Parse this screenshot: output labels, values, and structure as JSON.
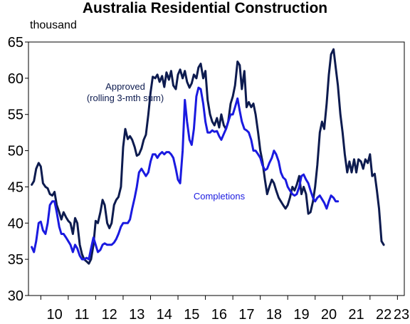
{
  "chart_data": {
    "type": "line",
    "title": "Australia Residential Construction",
    "ylabel": "thousand",
    "ylim": [
      30,
      65
    ],
    "yticks": [
      30,
      35,
      40,
      45,
      50,
      55,
      60,
      65
    ],
    "xlim": [
      2009.55,
      2023.25
    ],
    "xticks": [
      {
        "x": 2010,
        "label": "10"
      },
      {
        "x": 2011,
        "label": "11"
      },
      {
        "x": 2012,
        "label": "12"
      },
      {
        "x": 2013,
        "label": "13"
      },
      {
        "x": 2014,
        "label": "14"
      },
      {
        "x": 2015,
        "label": "15"
      },
      {
        "x": 2016,
        "label": "16"
      },
      {
        "x": 2017,
        "label": "17"
      },
      {
        "x": 2018,
        "label": "18"
      },
      {
        "x": 2019,
        "label": "19"
      },
      {
        "x": 2020,
        "label": "20"
      },
      {
        "x": 2021,
        "label": "21"
      },
      {
        "x": 2022,
        "label": "22"
      },
      {
        "x": 2023,
        "label": "23"
      }
    ],
    "grid": false,
    "series": [
      {
        "name": "Approved (rolling 3-mth sum)",
        "color": "#0d1b4f",
        "label_lines": [
          "Approved",
          "(rolling 3-mth sum)"
        ],
        "points": [
          [
            2009.67,
            45.3
          ],
          [
            2009.75,
            45.8
          ],
          [
            2009.83,
            47.5
          ],
          [
            2009.92,
            48.3
          ],
          [
            2010.0,
            47.8
          ],
          [
            2010.08,
            45.5
          ],
          [
            2010.17,
            45.0
          ],
          [
            2010.25,
            44.8
          ],
          [
            2010.33,
            44.0
          ],
          [
            2010.42,
            43.8
          ],
          [
            2010.5,
            44.3
          ],
          [
            2010.58,
            42.5
          ],
          [
            2010.67,
            41.5
          ],
          [
            2010.75,
            40.5
          ],
          [
            2010.83,
            41.5
          ],
          [
            2010.92,
            40.8
          ],
          [
            2011.0,
            40.3
          ],
          [
            2011.08,
            40.0
          ],
          [
            2011.17,
            38.5
          ],
          [
            2011.25,
            40.7
          ],
          [
            2011.33,
            40.0
          ],
          [
            2011.42,
            37.0
          ],
          [
            2011.5,
            35.7
          ],
          [
            2011.58,
            35.0
          ],
          [
            2011.67,
            34.7
          ],
          [
            2011.75,
            34.4
          ],
          [
            2011.83,
            35.0
          ],
          [
            2011.92,
            37.0
          ],
          [
            2012.0,
            40.3
          ],
          [
            2012.08,
            40.0
          ],
          [
            2012.17,
            41.5
          ],
          [
            2012.25,
            43.2
          ],
          [
            2012.33,
            42.5
          ],
          [
            2012.42,
            40.0
          ],
          [
            2012.5,
            39.3
          ],
          [
            2012.58,
            40.0
          ],
          [
            2012.67,
            42.5
          ],
          [
            2012.75,
            43.2
          ],
          [
            2012.83,
            43.6
          ],
          [
            2012.92,
            45.0
          ],
          [
            2013.0,
            50.5
          ],
          [
            2013.08,
            53.0
          ],
          [
            2013.17,
            51.6
          ],
          [
            2013.25,
            52.0
          ],
          [
            2013.33,
            51.5
          ],
          [
            2013.42,
            50.5
          ],
          [
            2013.5,
            49.3
          ],
          [
            2013.58,
            49.5
          ],
          [
            2013.67,
            50.3
          ],
          [
            2013.75,
            51.5
          ],
          [
            2013.83,
            52.2
          ],
          [
            2013.92,
            55.0
          ],
          [
            2014.0,
            58.0
          ],
          [
            2014.08,
            60.2
          ],
          [
            2014.17,
            60.0
          ],
          [
            2014.25,
            60.5
          ],
          [
            2014.33,
            59.5
          ],
          [
            2014.42,
            60.3
          ],
          [
            2014.5,
            58.8
          ],
          [
            2014.58,
            60.8
          ],
          [
            2014.67,
            59.8
          ],
          [
            2014.75,
            61.0
          ],
          [
            2014.83,
            59.0
          ],
          [
            2014.92,
            58.5
          ],
          [
            2015.0,
            60.5
          ],
          [
            2015.08,
            61.2
          ],
          [
            2015.17,
            60.0
          ],
          [
            2015.25,
            61.0
          ],
          [
            2015.33,
            59.5
          ],
          [
            2015.42,
            58.7
          ],
          [
            2015.5,
            59.3
          ],
          [
            2015.58,
            60.5
          ],
          [
            2015.67,
            60.0
          ],
          [
            2015.75,
            61.5
          ],
          [
            2015.83,
            62.0
          ],
          [
            2015.92,
            60.0
          ],
          [
            2016.0,
            61.0
          ],
          [
            2016.08,
            57.0
          ],
          [
            2016.17,
            55.0
          ],
          [
            2016.25,
            54.0
          ],
          [
            2016.33,
            53.5
          ],
          [
            2016.42,
            54.5
          ],
          [
            2016.5,
            53.2
          ],
          [
            2016.58,
            55.0
          ],
          [
            2016.67,
            53.5
          ],
          [
            2016.75,
            53.0
          ],
          [
            2016.83,
            54.0
          ],
          [
            2016.92,
            56.5
          ],
          [
            2017.0,
            57.5
          ],
          [
            2017.08,
            59.0
          ],
          [
            2017.17,
            62.3
          ],
          [
            2017.25,
            61.8
          ],
          [
            2017.33,
            58.5
          ],
          [
            2017.42,
            61.0
          ],
          [
            2017.5,
            56.0
          ],
          [
            2017.58,
            56.7
          ],
          [
            2017.67,
            56.0
          ],
          [
            2017.75,
            56.5
          ],
          [
            2017.83,
            55.0
          ],
          [
            2017.92,
            52.5
          ],
          [
            2018.0,
            50.0
          ],
          [
            2018.08,
            48.5
          ],
          [
            2018.17,
            46.0
          ],
          [
            2018.25,
            44.0
          ],
          [
            2018.33,
            45.0
          ],
          [
            2018.42,
            46.0
          ],
          [
            2018.5,
            45.5
          ],
          [
            2018.58,
            44.5
          ],
          [
            2018.67,
            43.5
          ],
          [
            2018.75,
            43.0
          ],
          [
            2018.83,
            42.5
          ],
          [
            2018.92,
            42.0
          ],
          [
            2019.0,
            42.5
          ],
          [
            2019.08,
            43.5
          ],
          [
            2019.17,
            45.0
          ],
          [
            2019.25,
            44.5
          ],
          [
            2019.33,
            45.3
          ],
          [
            2019.42,
            46.5
          ],
          [
            2019.5,
            44.0
          ],
          [
            2019.58,
            45.0
          ],
          [
            2019.67,
            44.0
          ],
          [
            2019.75,
            41.3
          ],
          [
            2019.83,
            41.5
          ],
          [
            2019.92,
            43.0
          ],
          [
            2020.0,
            45.0
          ],
          [
            2020.08,
            48.0
          ],
          [
            2020.17,
            52.5
          ],
          [
            2020.25,
            54.0
          ],
          [
            2020.33,
            53.0
          ],
          [
            2020.42,
            56.5
          ],
          [
            2020.5,
            60.5
          ],
          [
            2020.58,
            63.3
          ],
          [
            2020.67,
            64.0
          ],
          [
            2020.75,
            61.5
          ],
          [
            2020.83,
            59.0
          ],
          [
            2020.92,
            55.0
          ],
          [
            2021.0,
            52.5
          ],
          [
            2021.08,
            49.5
          ],
          [
            2021.17,
            47.0
          ],
          [
            2021.25,
            48.5
          ],
          [
            2021.33,
            47.0
          ],
          [
            2021.42,
            48.8
          ],
          [
            2021.5,
            47.0
          ],
          [
            2021.58,
            48.8
          ],
          [
            2021.67,
            48.5
          ],
          [
            2021.75,
            47.5
          ],
          [
            2021.83,
            48.8
          ],
          [
            2021.92,
            48.3
          ],
          [
            2022.0,
            49.5
          ],
          [
            2022.08,
            46.5
          ],
          [
            2022.17,
            46.8
          ],
          [
            2022.25,
            44.5
          ],
          [
            2022.33,
            42.0
          ],
          [
            2022.42,
            37.5
          ],
          [
            2022.5,
            37.0
          ]
        ]
      },
      {
        "name": "Completions",
        "color": "#1a1ae0",
        "label_lines": [
          "Completions"
        ],
        "points": [
          [
            2009.67,
            36.7
          ],
          [
            2009.75,
            36.0
          ],
          [
            2009.83,
            37.5
          ],
          [
            2009.92,
            40.0
          ],
          [
            2010.0,
            40.2
          ],
          [
            2010.08,
            39.0
          ],
          [
            2010.17,
            38.5
          ],
          [
            2010.25,
            40.0
          ],
          [
            2010.33,
            42.5
          ],
          [
            2010.42,
            43.0
          ],
          [
            2010.5,
            43.0
          ],
          [
            2010.58,
            41.5
          ],
          [
            2010.67,
            39.5
          ],
          [
            2010.75,
            38.5
          ],
          [
            2010.83,
            38.5
          ],
          [
            2010.92,
            38.0
          ],
          [
            2011.0,
            37.5
          ],
          [
            2011.08,
            37.0
          ],
          [
            2011.17,
            36.0
          ],
          [
            2011.25,
            37.0
          ],
          [
            2011.33,
            36.5
          ],
          [
            2011.42,
            35.5
          ],
          [
            2011.5,
            35.0
          ],
          [
            2011.58,
            35.0
          ],
          [
            2011.67,
            35.2
          ],
          [
            2011.75,
            35.0
          ],
          [
            2011.83,
            36.5
          ],
          [
            2011.92,
            38.0
          ],
          [
            2012.0,
            37.0
          ],
          [
            2012.08,
            36.0
          ],
          [
            2012.17,
            36.3
          ],
          [
            2012.25,
            37.0
          ],
          [
            2012.33,
            37.2
          ],
          [
            2012.42,
            37.0
          ],
          [
            2012.5,
            37.0
          ],
          [
            2012.58,
            37.0
          ],
          [
            2012.67,
            37.3
          ],
          [
            2012.75,
            37.8
          ],
          [
            2012.83,
            38.5
          ],
          [
            2012.92,
            39.5
          ],
          [
            2013.0,
            40.0
          ],
          [
            2013.08,
            40.0
          ],
          [
            2013.17,
            40.0
          ],
          [
            2013.25,
            40.5
          ],
          [
            2013.33,
            42.0
          ],
          [
            2013.42,
            43.5
          ],
          [
            2013.5,
            45.0
          ],
          [
            2013.58,
            47.0
          ],
          [
            2013.67,
            47.5
          ],
          [
            2013.75,
            47.0
          ],
          [
            2013.83,
            46.5
          ],
          [
            2013.92,
            47.0
          ],
          [
            2014.0,
            48.5
          ],
          [
            2014.08,
            49.5
          ],
          [
            2014.17,
            49.5
          ],
          [
            2014.25,
            49.0
          ],
          [
            2014.33,
            49.5
          ],
          [
            2014.42,
            49.8
          ],
          [
            2014.5,
            49.5
          ],
          [
            2014.58,
            49.8
          ],
          [
            2014.67,
            49.8
          ],
          [
            2014.75,
            49.5
          ],
          [
            2014.83,
            49.0
          ],
          [
            2014.92,
            47.5
          ],
          [
            2015.0,
            46.0
          ],
          [
            2015.08,
            45.5
          ],
          [
            2015.17,
            50.0
          ],
          [
            2015.25,
            57.0
          ],
          [
            2015.33,
            54.0
          ],
          [
            2015.42,
            51.5
          ],
          [
            2015.5,
            50.8
          ],
          [
            2015.58,
            53.0
          ],
          [
            2015.67,
            57.5
          ],
          [
            2015.75,
            58.7
          ],
          [
            2015.83,
            58.5
          ],
          [
            2015.92,
            56.5
          ],
          [
            2016.0,
            54.0
          ],
          [
            2016.08,
            52.5
          ],
          [
            2016.17,
            52.5
          ],
          [
            2016.25,
            52.8
          ],
          [
            2016.33,
            52.6
          ],
          [
            2016.42,
            52.7
          ],
          [
            2016.5,
            52.0
          ],
          [
            2016.58,
            51.5
          ],
          [
            2016.67,
            52.3
          ],
          [
            2016.75,
            53.0
          ],
          [
            2016.83,
            54.0
          ],
          [
            2016.92,
            55.0
          ],
          [
            2017.0,
            55.0
          ],
          [
            2017.08,
            56.0
          ],
          [
            2017.17,
            57.2
          ],
          [
            2017.25,
            55.5
          ],
          [
            2017.33,
            54.0
          ],
          [
            2017.42,
            53.0
          ],
          [
            2017.5,
            52.8
          ],
          [
            2017.58,
            52.5
          ],
          [
            2017.67,
            51.5
          ],
          [
            2017.75,
            50.0
          ],
          [
            2017.83,
            50.0
          ],
          [
            2017.92,
            49.5
          ],
          [
            2018.0,
            49.0
          ],
          [
            2018.08,
            48.0
          ],
          [
            2018.17,
            47.3
          ],
          [
            2018.25,
            47.5
          ],
          [
            2018.33,
            48.3
          ],
          [
            2018.42,
            49.0
          ],
          [
            2018.5,
            50.0
          ],
          [
            2018.58,
            49.5
          ],
          [
            2018.67,
            48.5
          ],
          [
            2018.75,
            47.0
          ],
          [
            2018.83,
            46.3
          ],
          [
            2018.92,
            46.0
          ],
          [
            2019.0,
            45.0
          ],
          [
            2019.08,
            44.5
          ],
          [
            2019.17,
            44.0
          ],
          [
            2019.25,
            43.8
          ],
          [
            2019.33,
            44.0
          ],
          [
            2019.42,
            45.0
          ],
          [
            2019.5,
            46.5
          ],
          [
            2019.58,
            46.7
          ],
          [
            2019.67,
            46.0
          ],
          [
            2019.75,
            45.5
          ],
          [
            2019.83,
            44.5
          ],
          [
            2019.92,
            43.5
          ],
          [
            2020.0,
            43.0
          ],
          [
            2020.08,
            43.5
          ],
          [
            2020.17,
            43.8
          ],
          [
            2020.25,
            43.3
          ],
          [
            2020.33,
            42.8
          ],
          [
            2020.42,
            42.0
          ],
          [
            2020.5,
            43.0
          ],
          [
            2020.58,
            43.8
          ],
          [
            2020.67,
            43.5
          ],
          [
            2020.75,
            43.0
          ],
          [
            2020.83,
            43.0
          ]
        ]
      }
    ]
  }
}
